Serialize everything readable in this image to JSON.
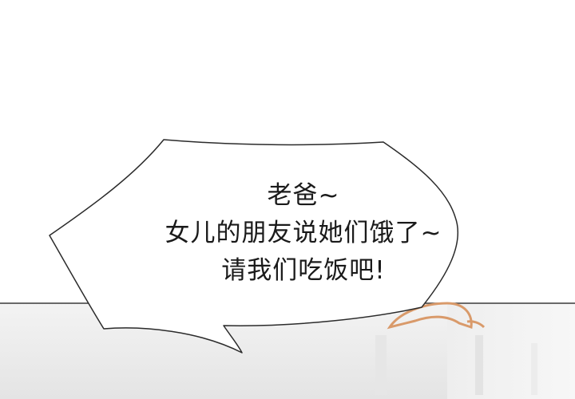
{
  "speech_bubble": {
    "lines": [
      "老爸~",
      "女儿的朋友说她们饿了~",
      "请我们吃饭吧!"
    ]
  },
  "colors": {
    "background": "#ffffff",
    "bubble_fill": "#ffffff",
    "bubble_outline": "#2b2b2b",
    "text": "#1a1a1a",
    "floor_line": "#3a3a3a",
    "character_hair": "#d99a6a"
  }
}
